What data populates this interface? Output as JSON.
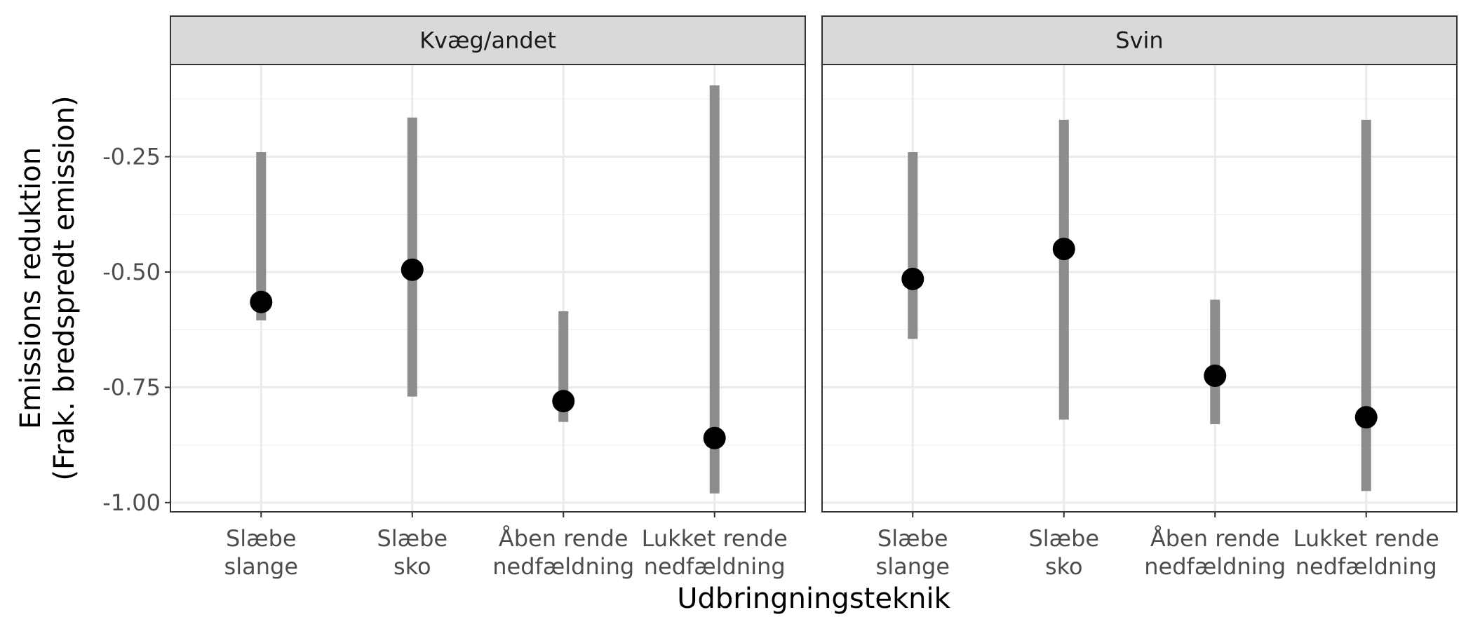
{
  "chart_data": {
    "type": "pointrange",
    "xlabel": "Udbringningsteknik",
    "ylabel_lines": [
      "Emissions reduktion",
      "(Frak. bredspredt emission)"
    ],
    "categories": [
      [
        "Slæbe",
        "slange"
      ],
      [
        "Slæbe",
        "sko"
      ],
      [
        "Åben rende",
        "nedfældning"
      ],
      [
        "Lukket rende",
        "nedfældning"
      ]
    ],
    "yticks": [
      -1.0,
      -0.75,
      -0.5,
      -0.25
    ],
    "ytick_labels": [
      "-1.00",
      "-0.75",
      "-0.50",
      "-0.25"
    ],
    "ylim": [
      -1.02,
      -0.05
    ],
    "grid": true,
    "colors": {
      "range": "#8c8c8c",
      "point": "#000000",
      "strip_fill": "#d9d9d9",
      "panel_border": "#333333",
      "grid": "#ebebeb"
    },
    "panels": [
      {
        "title": "Kvæg/andet",
        "points": [
          {
            "y": -0.565,
            "low": -0.605,
            "high": -0.24
          },
          {
            "y": -0.495,
            "low": -0.77,
            "high": -0.165
          },
          {
            "y": -0.78,
            "low": -0.825,
            "high": -0.585
          },
          {
            "y": -0.86,
            "low": -0.98,
            "high": -0.095
          }
        ]
      },
      {
        "title": "Svin",
        "points": [
          {
            "y": -0.515,
            "low": -0.645,
            "high": -0.24
          },
          {
            "y": -0.45,
            "low": -0.82,
            "high": -0.17
          },
          {
            "y": -0.725,
            "low": -0.83,
            "high": -0.56
          },
          {
            "y": -0.815,
            "low": -0.975,
            "high": -0.17
          }
        ]
      }
    ]
  }
}
